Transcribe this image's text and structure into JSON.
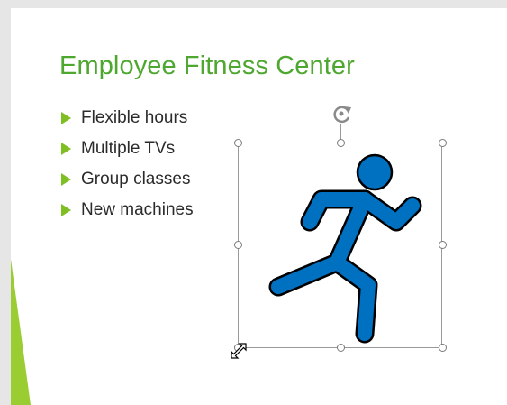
{
  "slide": {
    "title": "Employee Fitness Center",
    "bullets": [
      {
        "label": "Flexible hours"
      },
      {
        "label": "Multiple TVs"
      },
      {
        "label": "Group classes"
      },
      {
        "label": "New machines"
      }
    ]
  },
  "graphic": {
    "icon": "running-person-icon",
    "selected": true
  },
  "colors": {
    "title": "#4ea72e",
    "bullet_arrow": "#7fbf24",
    "accent": "#9acd32",
    "icon_fill": "#0070c0",
    "icon_stroke": "#000000",
    "text": "#2b2b2b",
    "canvas_background": "#e6e6e6"
  }
}
